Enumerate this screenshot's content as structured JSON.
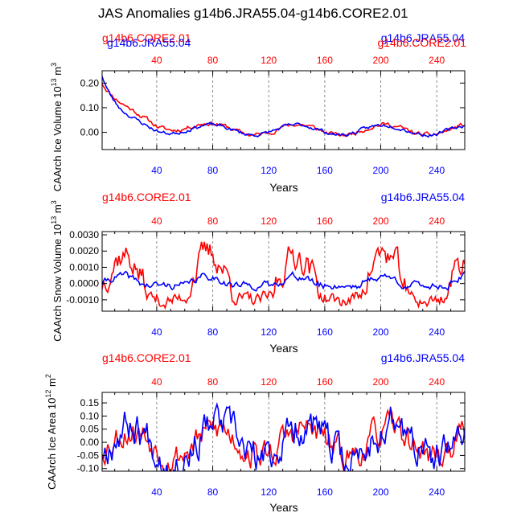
{
  "figure": {
    "title": "JAS Anomalies g14b6.JRA55.04-g14b6.CORE2.01"
  },
  "colors": {
    "core": "#ff0000",
    "jra": "#0000ff",
    "axis": "#000000",
    "grid": "#8a8a8a"
  },
  "panels": [
    {
      "legend_core": "g14b6.CORE2.01",
      "legend_jra": "g14b6.JRA55.04",
      "ylabel": "CAArch Ice Volume",
      "yunits": "10",
      "yunits_exp": "13",
      "yunits_tail": " m",
      "yunits_tail_exp": "3",
      "xlabel": "Years",
      "yticks_text": [
        "0.20",
        "0.10",
        "0.00"
      ]
    },
    {
      "legend_core": "g14b6.CORE2.01",
      "legend_jra": "g14b6.JRA55.04",
      "ylabel": "CAArch Snow Volume",
      "yunits": "10",
      "yunits_exp": "13",
      "yunits_tail": " m",
      "yunits_tail_exp": "3",
      "xlabel": "Years",
      "yticks_text": [
        "0.0030",
        "0.0020",
        "0.0010",
        "0.0000",
        "-0.0010"
      ]
    },
    {
      "legend_core": "g14b6.CORE2.01",
      "legend_jra": "g14b6.JRA55.04",
      "ylabel": "CAArch Ice Area",
      "yunits": "10",
      "yunits_exp": "12",
      "yunits_tail": " m",
      "yunits_tail_exp": "2",
      "xlabel": "Years",
      "yticks_text": [
        "0.15",
        "0.10",
        "0.05",
        "0.00",
        "-0.05",
        "-0.10"
      ]
    }
  ],
  "chart_data": [
    {
      "type": "line",
      "title": "CAArch Ice Volume",
      "xlabel": "Years",
      "ylabel": "CAArch Ice Volume 10^13 m^3",
      "xlim": [
        1,
        260
      ],
      "ylim": [
        -0.07,
        0.25
      ],
      "xticks": [
        40,
        80,
        120,
        160,
        200,
        240
      ],
      "yticks": [
        0.2,
        0.1,
        0.0
      ],
      "ytick_labels": [
        "0.20",
        "0.10",
        "0.00"
      ],
      "grid": "dashed vertical lines at top-axis ticks",
      "series": [
        {
          "name": "g14b6.CORE2.01",
          "color": "red",
          "kind": "ice_volume",
          "seed": 11,
          "gen": {
            "start": 0.2,
            "decay": 0.18,
            "tau": 22,
            "amp": 0.022,
            "noise": 0.012,
            "offset": -0.01
          }
        },
        {
          "name": "g14b6.JRA55.04",
          "color": "blue",
          "kind": "ice_volume",
          "seed": 23,
          "gen": {
            "start": 0.23,
            "decay": 0.22,
            "tau": 13,
            "amp": 0.02,
            "noise": 0.01,
            "offset": 0.0
          }
        }
      ]
    },
    {
      "type": "line",
      "title": "CAArch Snow Volume",
      "xlabel": "Years",
      "ylabel": "CAArch Snow Volume 10^13 m^3",
      "xlim": [
        1,
        260
      ],
      "ylim": [
        -0.0017,
        0.0032
      ],
      "xticks": [
        40,
        80,
        120,
        160,
        200,
        240
      ],
      "yticks": [
        0.003,
        0.002,
        0.001,
        0.0,
        -0.001
      ],
      "ytick_labels": [
        "0.0030",
        "0.0020",
        "0.0010",
        "0.0000",
        "-0.0010"
      ],
      "grid": "dashed vertical lines at top-axis ticks",
      "series": [
        {
          "name": "g14b6.CORE2.01",
          "color": "red",
          "kind": "snow_core",
          "seed": 37,
          "gen": {
            "amp": 0.0018,
            "noise": 0.0007,
            "low": -0.0011
          }
        },
        {
          "name": "g14b6.JRA55.04",
          "color": "blue",
          "kind": "snow_jra",
          "seed": 41,
          "gen": {
            "amp": 0.00045,
            "noise": 0.00018,
            "low": -0.00012
          }
        }
      ]
    },
    {
      "type": "line",
      "title": "CAArch Ice Area",
      "xlabel": "Years",
      "ylabel": "CAArch Ice Area 10^12 m^2",
      "xlim": [
        1,
        260
      ],
      "ylim": [
        -0.11,
        0.19
      ],
      "xticks": [
        40,
        80,
        120,
        160,
        200,
        240
      ],
      "yticks": [
        0.15,
        0.1,
        0.05,
        0.0,
        -0.05,
        -0.1
      ],
      "ytick_labels": [
        "0.15",
        "0.10",
        "0.05",
        "0.00",
        "-0.05",
        "-0.10"
      ],
      "grid": "dashed vertical lines at top-axis ticks",
      "series": [
        {
          "name": "g14b6.CORE2.01",
          "color": "red",
          "kind": "area",
          "seed": 53,
          "gen": {
            "amp": 0.05,
            "noise": 0.045
          }
        },
        {
          "name": "g14b6.JRA55.04",
          "color": "blue",
          "kind": "area",
          "seed": 67,
          "gen": {
            "amp": 0.07,
            "noise": 0.055
          }
        }
      ]
    }
  ]
}
